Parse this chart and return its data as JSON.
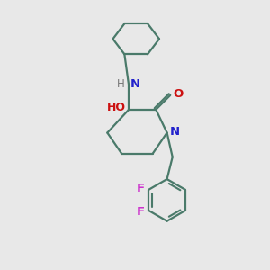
{
  "bg_color": "#e8e8e8",
  "bond_color": "#4a7a6a",
  "N_color": "#2222cc",
  "O_color": "#cc1111",
  "F_color": "#cc33cc",
  "H_color": "#777777",
  "line_width": 1.6,
  "figsize": [
    3.0,
    3.0
  ],
  "dpi": 100,
  "xlim": [
    0,
    10
  ],
  "ylim": [
    0,
    12
  ]
}
